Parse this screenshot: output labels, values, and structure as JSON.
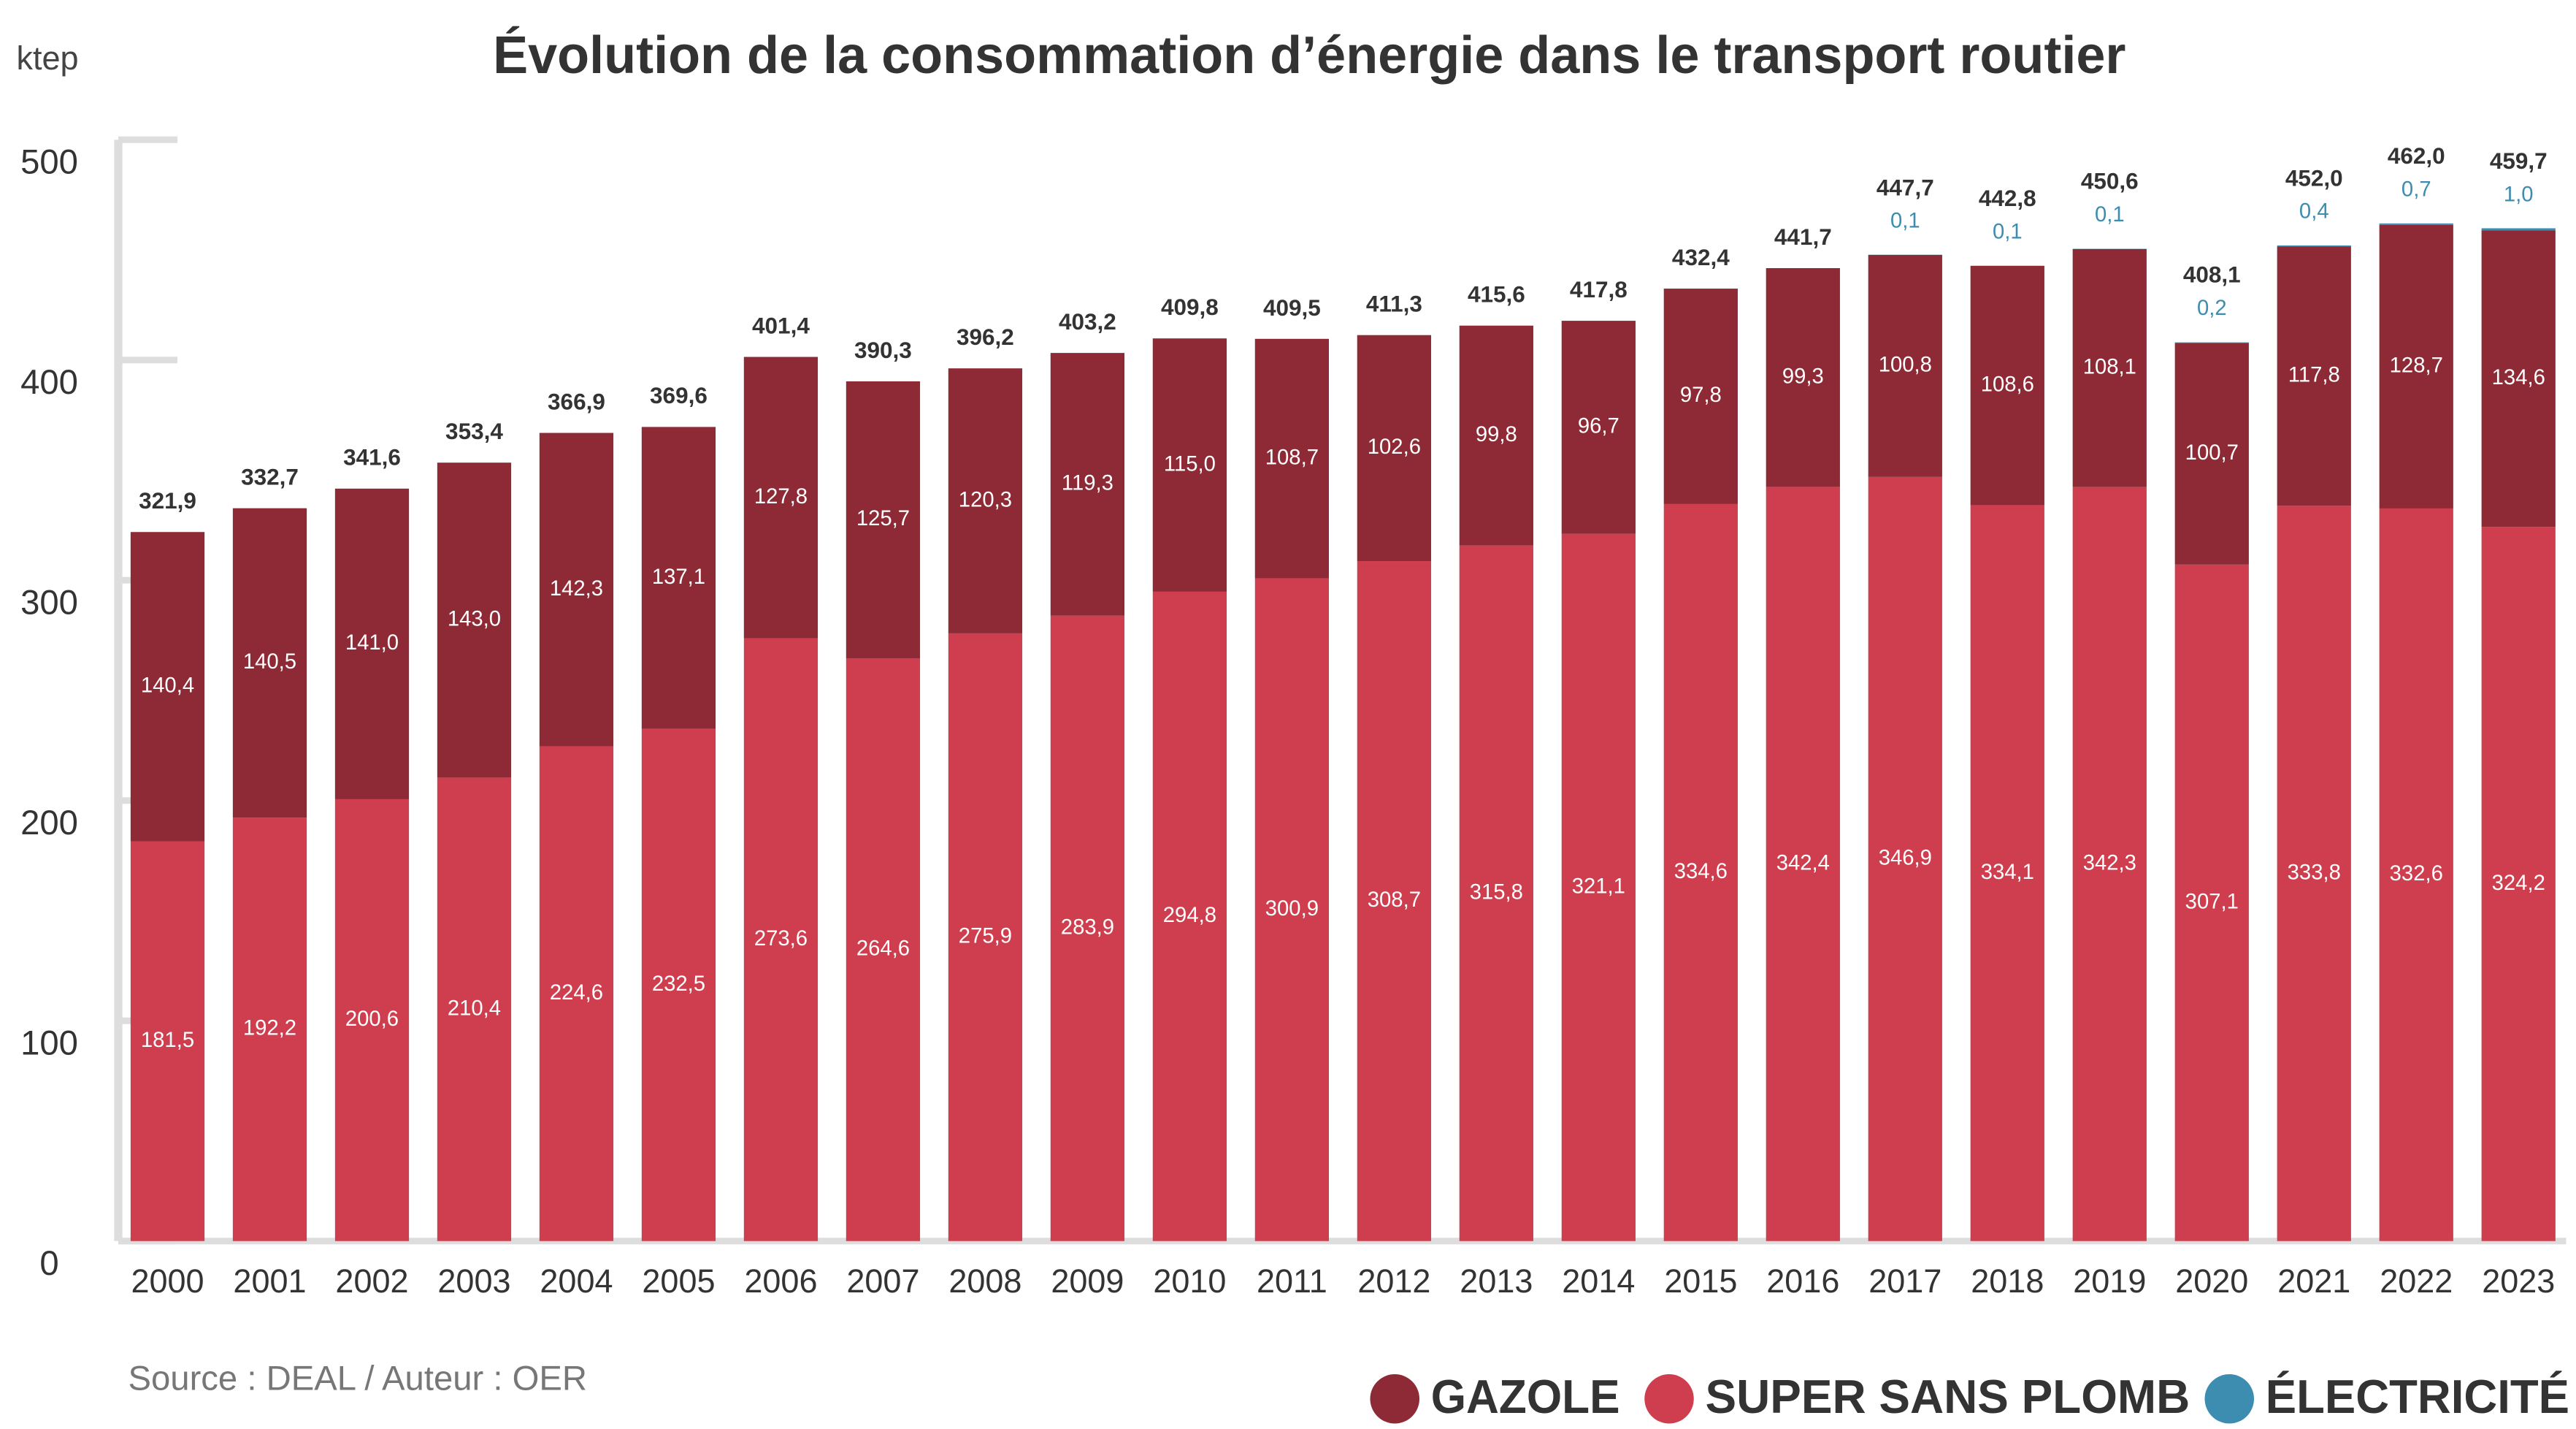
{
  "chart_data": {
    "type": "stacked_bar",
    "title": "Évolution de la consommation d’énergie dans le transport routier",
    "y_unit": "ktep",
    "source": "Source : DEAL / Auteur : OER",
    "categories": [
      "2000",
      "2001",
      "2002",
      "2003",
      "2004",
      "2005",
      "2006",
      "2007",
      "2008",
      "2009",
      "2010",
      "2011",
      "2012",
      "2013",
      "2014",
      "2015",
      "2016",
      "2017",
      "2018",
      "2019",
      "2020",
      "2021",
      "2022",
      "2023"
    ],
    "ylim": [
      0,
      500
    ],
    "yticks": [
      0,
      100,
      200,
      300,
      400,
      500
    ],
    "series": [
      {
        "name": "GAZOLE",
        "color": "#8e2a35",
        "values": [
          140.4,
          140.5,
          141.0,
          143.0,
          142.3,
          137.1,
          127.8,
          125.7,
          120.3,
          119.3,
          115.0,
          108.7,
          102.6,
          99.8,
          96.7,
          97.8,
          99.3,
          100.8,
          108.6,
          108.1,
          100.7,
          117.8,
          128.7,
          134.6
        ],
        "value_labels": [
          "140,4",
          "140,5",
          "141,0",
          "143,0",
          "142,3",
          "137,1",
          "127,8",
          "125,7",
          "120,3",
          "119,3",
          "115,0",
          "108,7",
          "102,6",
          "99,8",
          "96,7",
          "97,8",
          "99,3",
          "100,8",
          "108,6",
          "108,1",
          "100,7",
          "117,8",
          "128,7",
          "134,6"
        ]
      },
      {
        "name": "SUPER SANS PLOMB",
        "color": "#cf3e4e",
        "values": [
          181.5,
          192.2,
          200.6,
          210.4,
          224.6,
          232.5,
          273.6,
          264.6,
          275.9,
          283.9,
          294.8,
          300.9,
          308.7,
          315.8,
          321.1,
          334.6,
          342.4,
          346.9,
          334.1,
          342.3,
          307.1,
          333.8,
          332.6,
          324.2
        ],
        "value_labels": [
          "181,5",
          "192,2",
          "200,6",
          "210,4",
          "224,6",
          "232,5",
          "273,6",
          "264,6",
          "275,9",
          "283,9",
          "294,8",
          "300,9",
          "308,7",
          "315,8",
          "321,1",
          "334,6",
          "342,4",
          "346,9",
          "334,1",
          "342,3",
          "307,1",
          "333,8",
          "332,6",
          "324,2"
        ]
      },
      {
        "name": "ÉLECTRICITÉ",
        "color": "#3c8db0",
        "values": [
          null,
          null,
          null,
          null,
          null,
          null,
          null,
          null,
          null,
          null,
          null,
          null,
          null,
          null,
          null,
          null,
          null,
          0.1,
          0.1,
          0.1,
          0.2,
          0.4,
          0.7,
          1.0
        ],
        "value_labels": [
          null,
          null,
          null,
          null,
          null,
          null,
          null,
          null,
          null,
          null,
          null,
          null,
          null,
          null,
          null,
          null,
          null,
          "0,1",
          "0,1",
          "0,1",
          "0,2",
          "0,4",
          "0,7",
          "1,0"
        ]
      }
    ],
    "totals": [
      321.9,
      332.7,
      341.6,
      353.4,
      366.9,
      369.6,
      401.4,
      390.3,
      396.2,
      403.2,
      409.8,
      409.5,
      411.3,
      415.6,
      417.8,
      432.4,
      441.7,
      447.7,
      442.8,
      450.6,
      408.1,
      452.0,
      462.0,
      459.7
    ],
    "total_labels": [
      "321,9",
      "332,7",
      "341,6",
      "353,4",
      "366,9",
      "369,6",
      "401,4",
      "390,3",
      "396,2",
      "403,2",
      "409,8",
      "409,5",
      "411,3",
      "415,6",
      "417,8",
      "432,4",
      "441,7",
      "447,7",
      "442,8",
      "450,6",
      "408,1",
      "452,0",
      "462,0",
      "459,7"
    ]
  }
}
